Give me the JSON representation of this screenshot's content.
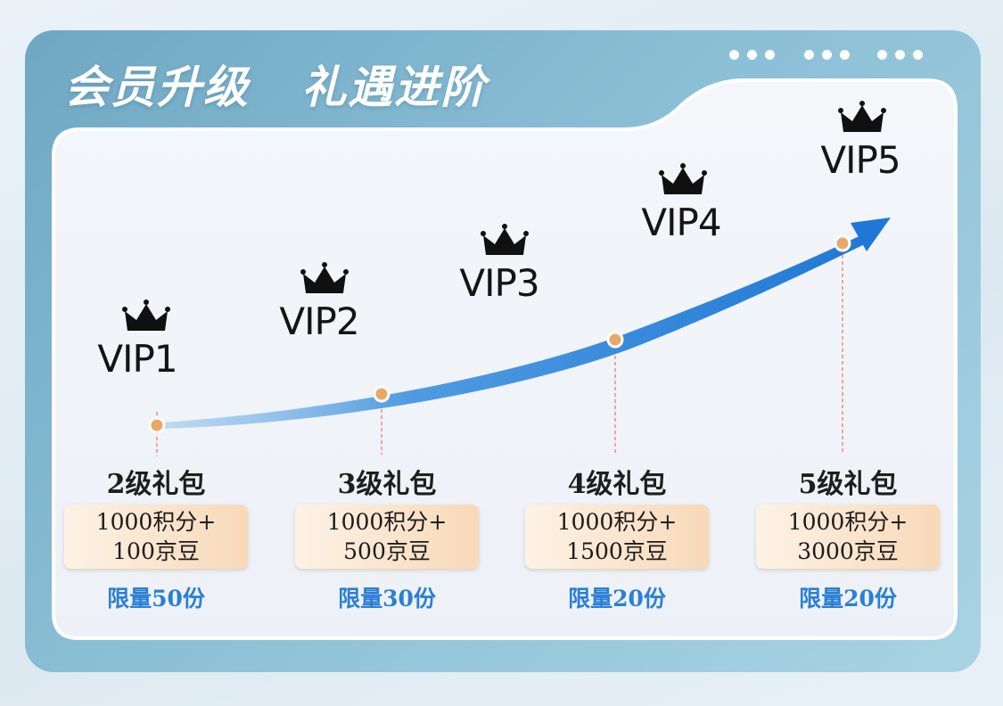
{
  "header": {
    "title": "会员升级   礼遇进阶"
  },
  "colors": {
    "frame": "#8bbfd6",
    "panel": "#f1f4f9",
    "arrow": "#2b82d9",
    "node": "#e8a868",
    "dash_line": "#f08a80",
    "gift_box": "#f8d9b8",
    "limit_text": "#2b7fd4"
  },
  "levels": [
    {
      "label": "VIP1",
      "icon": "crown-icon"
    },
    {
      "label": "VIP2",
      "icon": "crown-icon"
    },
    {
      "label": "VIP3",
      "icon": "crown-icon"
    },
    {
      "label": "VIP4",
      "icon": "crown-icon"
    },
    {
      "label": "VIP5",
      "icon": "crown-icon"
    }
  ],
  "gifts": [
    {
      "title": "2级礼包",
      "line1": "1000积分+",
      "line2": "100京豆",
      "limit": "限量50份"
    },
    {
      "title": "3级礼包",
      "line1": "1000积分+",
      "line2": "500京豆",
      "limit": "限量30份"
    },
    {
      "title": "4级礼包",
      "line1": "1000积分+",
      "line2": "1500京豆",
      "limit": "限量20份"
    },
    {
      "title": "5级礼包",
      "line1": "1000积分+",
      "line2": "3000京豆",
      "limit": "限量20份"
    }
  ]
}
